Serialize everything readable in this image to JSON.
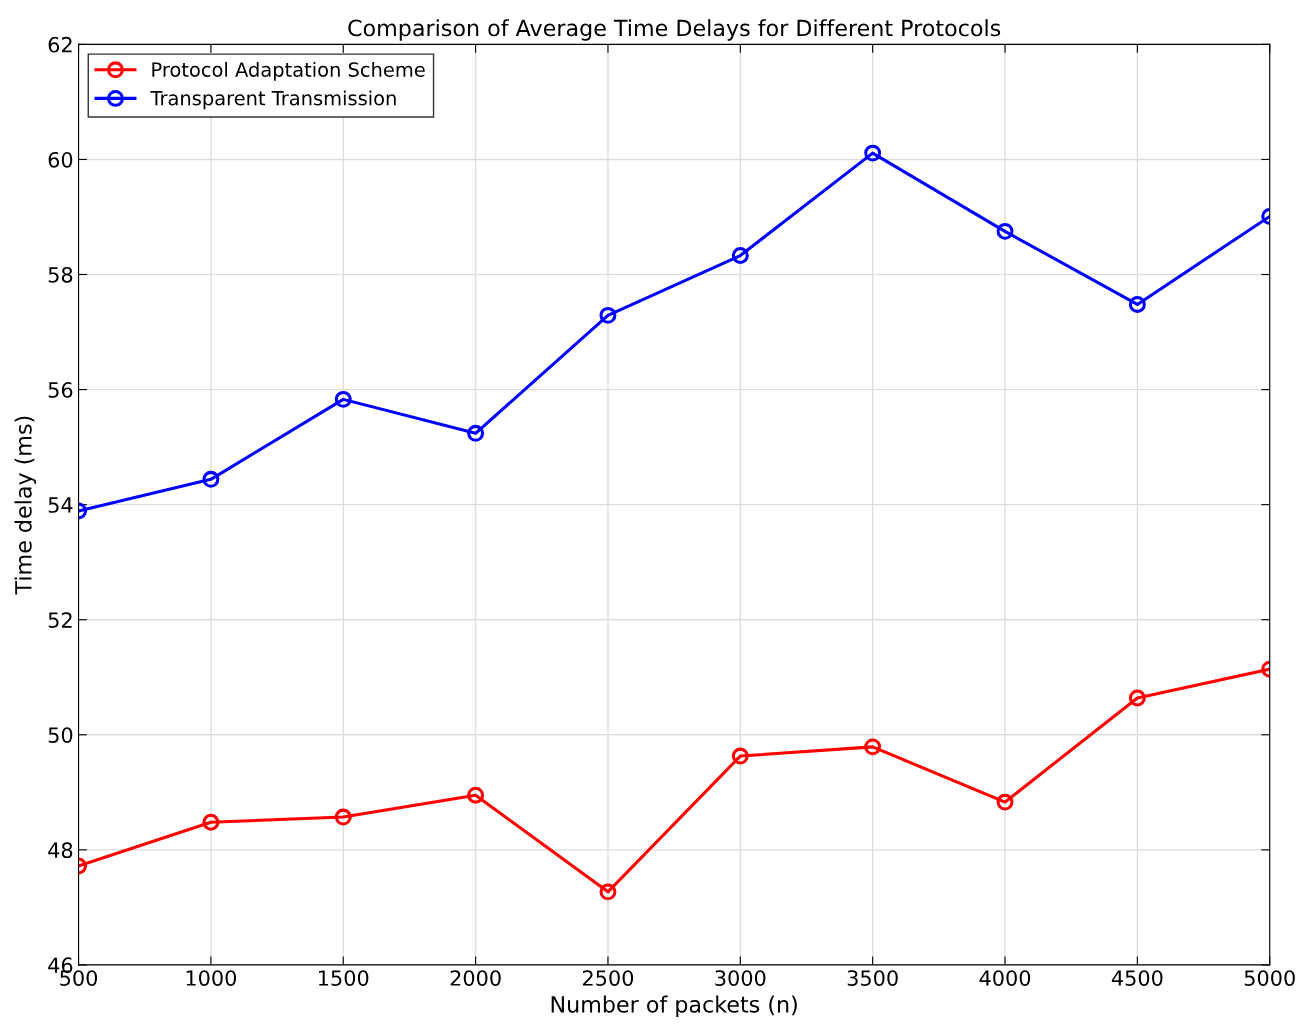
{
  "chart_data": {
    "type": "line",
    "title": "Comparison of Average Time Delays for Different Protocols",
    "xlabel": "Number of packets (n)",
    "ylabel": "Time delay (ms)",
    "x": [
      500,
      1000,
      1500,
      2000,
      2500,
      3000,
      3500,
      4000,
      4500,
      5000
    ],
    "series": [
      {
        "name": "Protocol Adaptation Scheme",
        "color": "#ff0000",
        "values": [
          47.72,
          48.48,
          48.57,
          48.95,
          47.27,
          49.63,
          49.79,
          48.83,
          50.64,
          51.14
        ]
      },
      {
        "name": "Transparent Transmission",
        "color": "#0000ff",
        "values": [
          53.89,
          54.44,
          55.83,
          55.24,
          57.29,
          58.33,
          60.11,
          58.75,
          57.48,
          59.01
        ]
      }
    ],
    "xlim": [
      500,
      5000
    ],
    "ylim": [
      46,
      62
    ],
    "xticks": [
      500,
      1000,
      1500,
      2000,
      2500,
      3000,
      3500,
      4000,
      4500,
      5000
    ],
    "yticks": [
      46,
      48,
      50,
      52,
      54,
      56,
      58,
      60,
      62
    ],
    "grid": true,
    "legend": "top left",
    "marker": "circle",
    "line_style": "solid"
  }
}
